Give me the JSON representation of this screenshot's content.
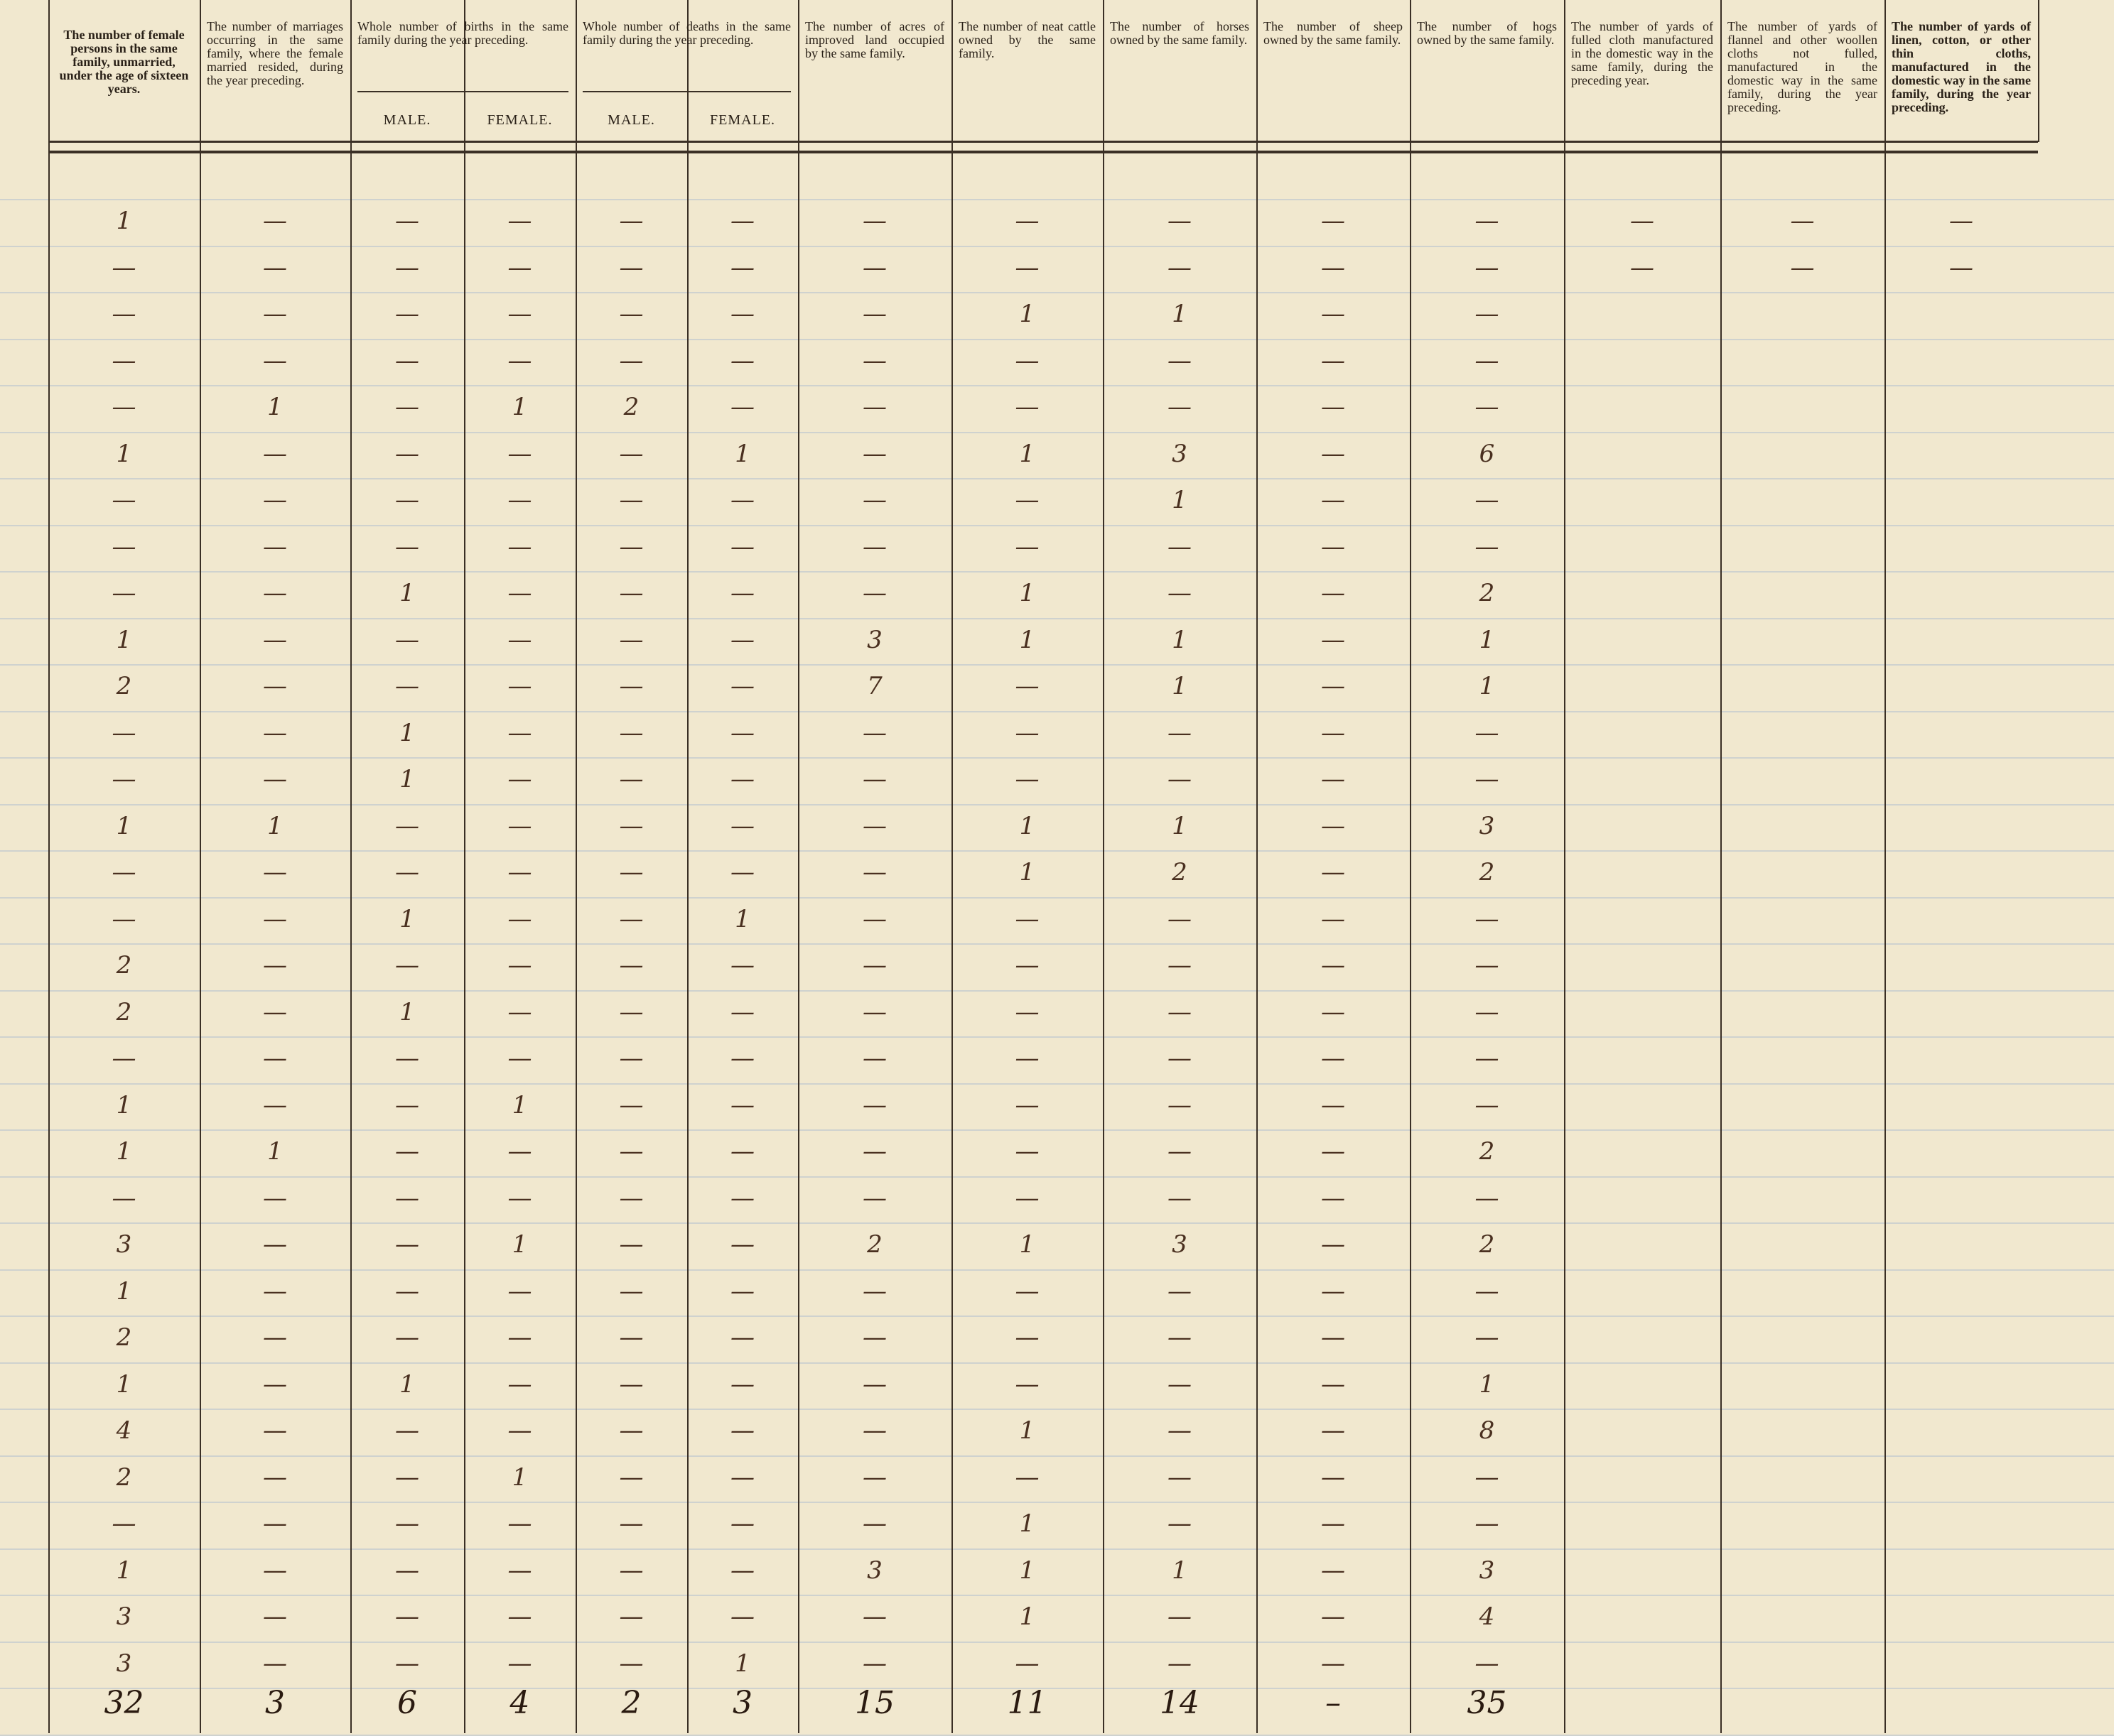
{
  "headings": [
    {
      "text": "The number of female persons in the same family, unmarried, under the age of sixteen years."
    },
    {
      "text": "The number of marriages occurring in the same family, where the female married resided, during the year preceding."
    },
    {
      "text": "Whole number of births in the same family during the year preceding.",
      "sub": [
        "MALE.",
        "FEMALE."
      ]
    },
    {
      "text": "Whole number of deaths in the same family during the year preceding.",
      "sub": [
        "MALE.",
        "FEMALE."
      ]
    },
    {
      "text": "The number of acres of improved land occupied by the same family."
    },
    {
      "text": "The number of neat cattle owned by the same family."
    },
    {
      "text": "The number of horses owned by the same family."
    },
    {
      "text": "The number of sheep owned by the same family."
    },
    {
      "text": "The number of hogs owned by the same family."
    },
    {
      "text": "The number of yards of fulled cloth manufactured in the domestic way in the same family, during the preceding year."
    },
    {
      "text": "The number of yards of flannel and other woollen cloths not fulled, manufactured in the domestic way in the same family, during the year preceding."
    },
    {
      "text": "The number of yards of linen, cotton, or other thin cloths, manufactured in the domestic way in the same family, during the year preceding."
    }
  ],
  "rows": [
    [
      "1",
      "—",
      "—",
      "—",
      "—",
      "—",
      "—",
      "—",
      "—",
      "—",
      "—",
      "—",
      "—",
      "—"
    ],
    [
      "—",
      "—",
      "—",
      "—",
      "—",
      "—",
      "—",
      "—",
      "—",
      "—",
      "—",
      "—",
      "—",
      "—"
    ],
    [
      "—",
      "—",
      "—",
      "—",
      "—",
      "—",
      "—",
      "1",
      "1",
      "—",
      "—"
    ],
    [
      "—",
      "—",
      "—",
      "—",
      "—",
      "—",
      "—",
      "—",
      "—",
      "—",
      "—"
    ],
    [
      "—",
      "1",
      "—",
      "1",
      "2",
      "—",
      "—",
      "—",
      "—",
      "—",
      "—"
    ],
    [
      "1",
      "—",
      "—",
      "—",
      "—",
      "1",
      "—",
      "1",
      "3",
      "—",
      "6"
    ],
    [
      "—",
      "—",
      "—",
      "—",
      "—",
      "—",
      "—",
      "—",
      "1",
      "—",
      "—"
    ],
    [
      "—",
      "—",
      "—",
      "—",
      "—",
      "—",
      "—",
      "—",
      "—",
      "—",
      "—"
    ],
    [
      "—",
      "—",
      "1",
      "—",
      "—",
      "—",
      "—",
      "1",
      "—",
      "—",
      "2"
    ],
    [
      "1",
      "—",
      "—",
      "—",
      "—",
      "—",
      "3",
      "1",
      "1",
      "—",
      "1"
    ],
    [
      "2",
      "—",
      "—",
      "—",
      "—",
      "—",
      "7",
      "—",
      "1",
      "—",
      "1"
    ],
    [
      "—",
      "—",
      "1",
      "—",
      "—",
      "—",
      "—",
      "—",
      "—",
      "—",
      "—"
    ],
    [
      "—",
      "—",
      "1",
      "—",
      "—",
      "—",
      "—",
      "—",
      "—",
      "—",
      "—"
    ],
    [
      "1",
      "1",
      "—",
      "—",
      "—",
      "—",
      "—",
      "1",
      "1",
      "—",
      "3"
    ],
    [
      "—",
      "—",
      "—",
      "—",
      "—",
      "—",
      "—",
      "1",
      "2",
      "—",
      "2"
    ],
    [
      "—",
      "—",
      "1",
      "—",
      "—",
      "1",
      "—",
      "—",
      "—",
      "—",
      "—"
    ],
    [
      "2",
      "—",
      "—",
      "—",
      "—",
      "—",
      "—",
      "—",
      "—",
      "—",
      "—"
    ],
    [
      "2",
      "—",
      "1",
      "—",
      "—",
      "—",
      "—",
      "—",
      "—",
      "—",
      "—"
    ],
    [
      "—",
      "—",
      "—",
      "—",
      "—",
      "—",
      "—",
      "—",
      "—",
      "—",
      "—"
    ],
    [
      "1",
      "—",
      "—",
      "1",
      "—",
      "—",
      "—",
      "—",
      "—",
      "—",
      "—"
    ],
    [
      "1",
      "1",
      "—",
      "—",
      "—",
      "—",
      "—",
      "—",
      "—",
      "—",
      "2"
    ],
    [
      "—",
      "—",
      "—",
      "—",
      "—",
      "—",
      "—",
      "—",
      "—",
      "—",
      "—"
    ],
    [
      "3",
      "—",
      "—",
      "1",
      "—",
      "—",
      "2",
      "1",
      "3",
      "—",
      "2"
    ],
    [
      "1",
      "—",
      "—",
      "—",
      "—",
      "—",
      "—",
      "—",
      "—",
      "—",
      "—"
    ],
    [
      "2",
      "—",
      "—",
      "—",
      "—",
      "—",
      "—",
      "—",
      "—",
      "—",
      "—"
    ],
    [
      "1",
      "—",
      "1",
      "—",
      "—",
      "—",
      "—",
      "—",
      "—",
      "—",
      "1"
    ],
    [
      "4",
      "—",
      "—",
      "—",
      "—",
      "—",
      "—",
      "1",
      "—",
      "—",
      "8"
    ],
    [
      "2",
      "—",
      "—",
      "1",
      "—",
      "—",
      "—",
      "—",
      "—",
      "—",
      "—"
    ],
    [
      "—",
      "—",
      "—",
      "—",
      "—",
      "—",
      "—",
      "1",
      "—",
      "—",
      "—"
    ],
    [
      "1",
      "—",
      "—",
      "—",
      "—",
      "—",
      "3",
      "1",
      "1",
      "—",
      "3"
    ],
    [
      "3",
      "—",
      "—",
      "—",
      "—",
      "—",
      "—",
      "1",
      "—",
      "—",
      "4"
    ],
    [
      "3",
      "—",
      "—",
      "—",
      "—",
      "1",
      "—",
      "—",
      "—",
      "—",
      "—"
    ]
  ],
  "totals": [
    "32",
    "3",
    "6",
    "4",
    "2",
    "3",
    "15",
    "11",
    "14",
    "–",
    "35"
  ]
}
